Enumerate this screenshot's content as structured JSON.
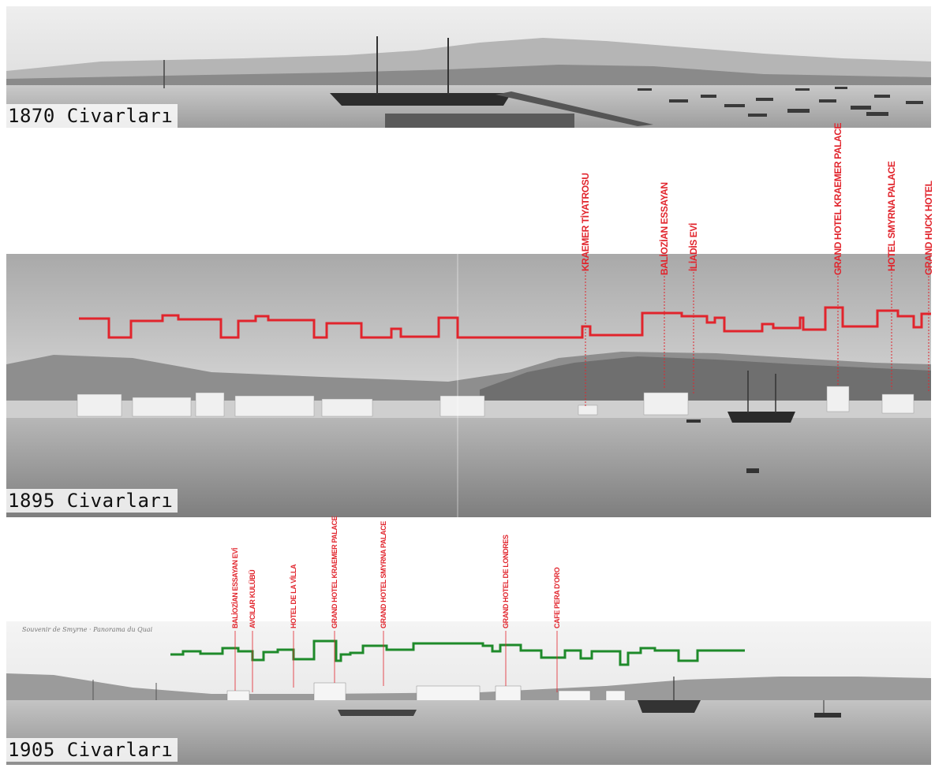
{
  "panels": [
    {
      "id": "1870",
      "label": "1870 Civarları",
      "landmarks": [],
      "skyline_color": null
    },
    {
      "id": "1895",
      "label": "1895 Civarları",
      "skyline_color": "#e1242c",
      "landmarks": [
        {
          "name": "KRAEMER TİYATROSU"
        },
        {
          "name": "BALİOZİAN ESSAYAN"
        },
        {
          "name": "İLİADİS EVİ"
        },
        {
          "name": "GRAND HOTEL KRAEMER PALACE"
        },
        {
          "name": "HOTEL SMYRNA PALACE"
        },
        {
          "name": "GRAND HUCK HOTEL"
        }
      ]
    },
    {
      "id": "1905",
      "label": "1905 Civarları",
      "skyline_color": "#1e8a2a",
      "caption": "Souvenir de Smyrne · Panorama du Quai",
      "landmarks": [
        {
          "name": "BALİOZİAN ESSAYAN EVİ"
        },
        {
          "name": "AVCILAR KULÜBÜ"
        },
        {
          "name": "HOTEL DE LA VİLLA"
        },
        {
          "name": "GRAND HOTEL KRAEMER PALACE"
        },
        {
          "name": "GRAND HOTEL SMYRNA PALACE"
        },
        {
          "name": "GRAND HOTEL DE LONDRES"
        },
        {
          "name": "CAFE PERA D'ORO"
        }
      ]
    }
  ],
  "colors": {
    "landmark_text": "#e1242c",
    "background": "#ffffff"
  }
}
